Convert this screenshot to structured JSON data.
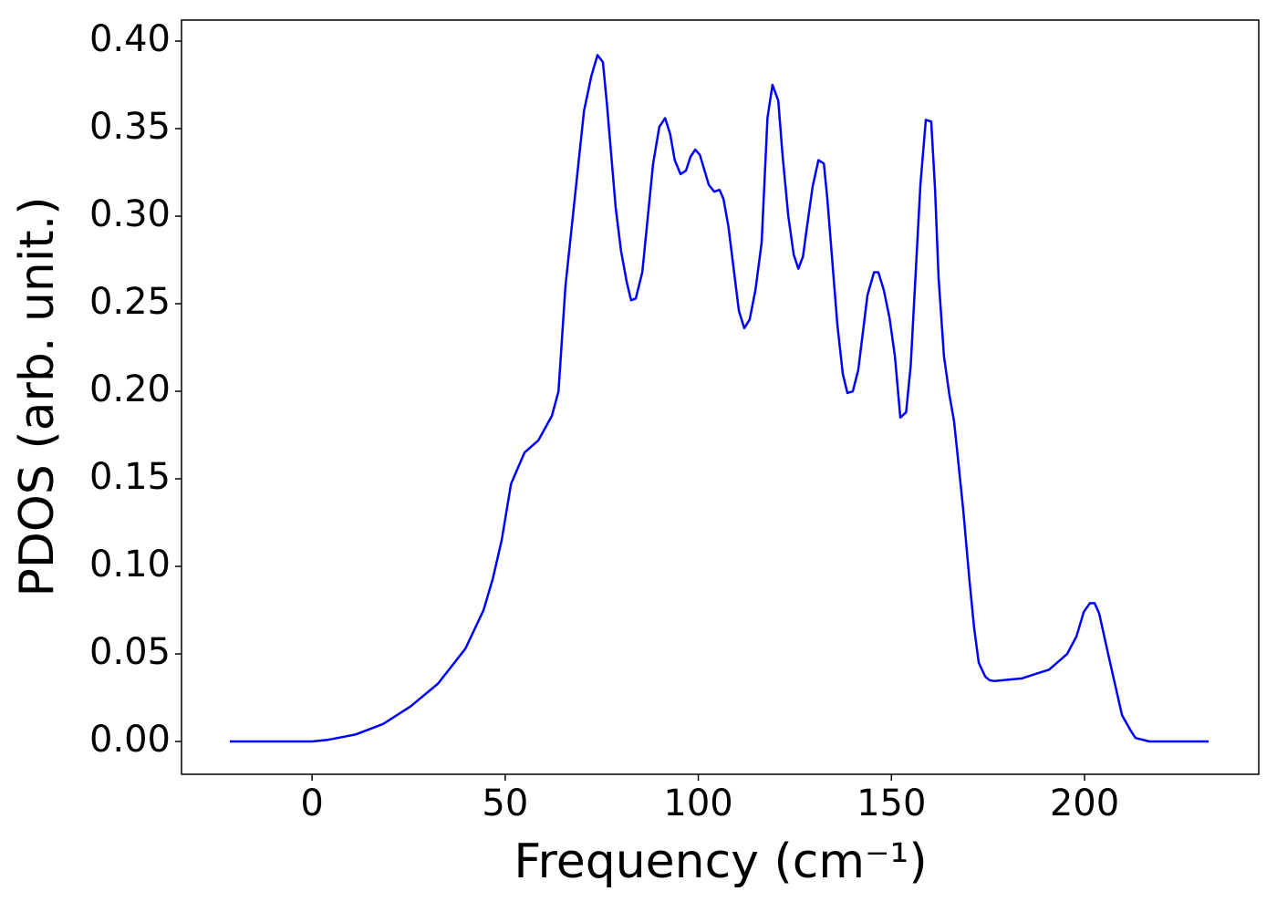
{
  "chart_data": {
    "type": "line",
    "xlabel": "Frequency (cm⁻¹)",
    "ylabel": "PDOS (arb. unit.)",
    "x": [
      -21.3,
      -10,
      0,
      4.3,
      11.3,
      18.4,
      25.5,
      32.6,
      39.7,
      44.4,
      46.8,
      49.1,
      51.5,
      55,
      58.6,
      62.1,
      63.8,
      65.6,
      68,
      70.4,
      72.3,
      73.9,
      75.3,
      76.3,
      78.6,
      80,
      81.5,
      82.6,
      83.8,
      85.5,
      88.3,
      89.9,
      91.4,
      92.7,
      93.9,
      95.4,
      96.8,
      98,
      99.2,
      100.4,
      102.7,
      104.1,
      105.5,
      106.5,
      107.8,
      110.5,
      111.9,
      113.3,
      114.8,
      116.4,
      117.9,
      119.2,
      120.7,
      121.8,
      123.3,
      124.7,
      125.9,
      127.1,
      128.2,
      129.6,
      131.1,
      132.5,
      133.4,
      136,
      137.4,
      138.6,
      140,
      141.4,
      143.8,
      145.5,
      146.6,
      148,
      149.5,
      150.9,
      152.3,
      153.8,
      155,
      157.5,
      158.9,
      160.3,
      161.3,
      162.2,
      163.6,
      165,
      166.2,
      167.2,
      168.6,
      170.2,
      171.4,
      172.6,
      174.3,
      175.4,
      176.6,
      183.7,
      190.8,
      195.5,
      197.9,
      199.8,
      201.4,
      202.6,
      203.8,
      206.1,
      209.7,
      212,
      213.2,
      216.8,
      232.1
    ],
    "series": [
      {
        "color": "#0000ff",
        "values": [
          0,
          0,
          0,
          0.001,
          0.004,
          0.01,
          0.02,
          0.033,
          0.053,
          0.075,
          0.093,
          0.115,
          0.147,
          0.165,
          0.172,
          0.186,
          0.2,
          0.26,
          0.31,
          0.36,
          0.38,
          0.392,
          0.388,
          0.365,
          0.305,
          0.28,
          0.262,
          0.252,
          0.253,
          0.268,
          0.33,
          0.351,
          0.356,
          0.347,
          0.332,
          0.324,
          0.326,
          0.334,
          0.338,
          0.335,
          0.318,
          0.314,
          0.315,
          0.31,
          0.294,
          0.246,
          0.236,
          0.241,
          0.258,
          0.285,
          0.356,
          0.375,
          0.366,
          0.335,
          0.3,
          0.278,
          0.27,
          0.277,
          0.295,
          0.317,
          0.332,
          0.33,
          0.31,
          0.238,
          0.21,
          0.199,
          0.2,
          0.212,
          0.255,
          0.268,
          0.268,
          0.258,
          0.242,
          0.22,
          0.185,
          0.188,
          0.215,
          0.318,
          0.355,
          0.354,
          0.315,
          0.265,
          0.22,
          0.198,
          0.183,
          0.162,
          0.132,
          0.092,
          0.065,
          0.045,
          0.037,
          0.035,
          0.0345,
          0.036,
          0.041,
          0.05,
          0.06,
          0.074,
          0.079,
          0.079,
          0.073,
          0.05,
          0.015,
          0.006,
          0.002,
          0,
          0
        ]
      }
    ],
    "xlim": [
      -33.8,
      245.1
    ],
    "ylim": [
      -0.01875,
      0.412
    ],
    "xticks": [
      0,
      50,
      100,
      150,
      200
    ],
    "yticks": [
      {
        "value": 0,
        "label": "0.00"
      },
      {
        "value": 0.05,
        "label": "0.05"
      },
      {
        "value": 0.1,
        "label": "0.10"
      },
      {
        "value": 0.15,
        "label": "0.15"
      },
      {
        "value": 0.2,
        "label": "0.20"
      },
      {
        "value": 0.25,
        "label": "0.25"
      },
      {
        "value": 0.3,
        "label": "0.30"
      },
      {
        "value": 0.35,
        "label": "0.35"
      },
      {
        "value": 0.4,
        "label": "0.40"
      }
    ]
  }
}
